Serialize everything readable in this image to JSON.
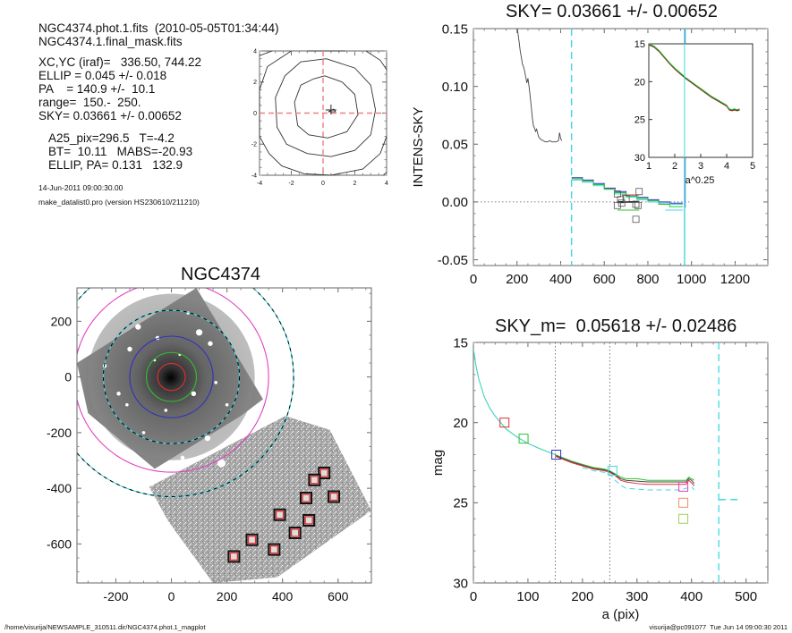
{
  "header": {
    "lines1": [
      "NGC4374.phot.1.fits  (2010-05-05T01:34:44)",
      "NGC4374.1.final_mask.fits"
    ],
    "lines2": [
      "XC,YC (iraf)=   336.50, 744.22",
      "ELLIP = 0.045 +/- 0.018",
      "PA    = 140.9 +/-  10.1",
      "range=  150.-  250.",
      "SKY= 0.03661 +/- 0.00652"
    ],
    "lines3": [
      "A25_pix=296.5   T=-4.2",
      "BT=  10.11   MABS=-20.93",
      "ELLIP, PA= 0.131   132.9"
    ],
    "date": "14-Jun-2011 09:00:30.00",
    "program": "make_datalist0.pro (version HS230610/211210)"
  },
  "footer": {
    "left": "/home/visurija/NEWSAMPLE_310511.dir/NGC4374.phot.1_magplot",
    "right": "visurija@pc091077  Tue Jun 14 09:00:30 2011"
  },
  "colors": {
    "red": "#e03030",
    "green": "#30c030",
    "blue": "#3030c0",
    "cyan": "#40d8e0",
    "magenta": "#e040c0",
    "orange": "#f09060",
    "olive": "#a0d060",
    "gray": "#444444"
  },
  "chart_data": [
    {
      "id": "contour",
      "type": "line",
      "title": "",
      "xlim": [
        -4,
        4
      ],
      "ylim": [
        -4,
        4
      ],
      "xticks": [
        "-4",
        "-2",
        "0",
        "2",
        "4"
      ],
      "yticks": [
        "-4",
        "-2",
        "0",
        "2",
        "4"
      ],
      "contours": [
        [
          [
            0.1,
            2.4
          ],
          [
            -0.6,
            2.2
          ],
          [
            -1.4,
            1.8
          ],
          [
            -1.8,
            0.7
          ],
          [
            -1.6,
            -0.8
          ],
          [
            -0.9,
            -1.4
          ],
          [
            0.3,
            -1.6
          ],
          [
            1.5,
            -1.2
          ],
          [
            2.2,
            -0.1
          ],
          [
            2.0,
            1.2
          ],
          [
            1.2,
            2.0
          ],
          [
            0.1,
            2.4
          ]
        ],
        [
          [
            0.2,
            3.5
          ],
          [
            -1.4,
            3.3
          ],
          [
            -2.4,
            2.4
          ],
          [
            -3.0,
            1.0
          ],
          [
            -2.9,
            -0.9
          ],
          [
            -2.3,
            -2.0
          ],
          [
            -1.0,
            -2.6
          ],
          [
            0.5,
            -2.8
          ],
          [
            2.0,
            -2.4
          ],
          [
            3.0,
            -1.4
          ],
          [
            3.3,
            0.2
          ],
          [
            3.0,
            1.8
          ],
          [
            2.0,
            2.9
          ],
          [
            0.2,
            3.5
          ]
        ],
        [
          [
            -4,
            3.7
          ],
          [
            -3.2,
            4.2
          ]
        ],
        [
          [
            -2.0,
            4.2
          ],
          [
            -3.5,
            3.0
          ],
          [
            -4.0,
            1.5
          ],
          [
            -4.0,
            -1.5
          ],
          [
            -3.4,
            -2.6
          ],
          [
            -2.6,
            -3.4
          ],
          [
            -1.2,
            -3.9
          ],
          [
            0.5,
            -4.0
          ],
          [
            2.5,
            -3.6
          ],
          [
            3.6,
            -2.6
          ],
          [
            4.0,
            -1.5
          ]
        ],
        [
          [
            -1.0,
            4.0
          ],
          [
            0.0,
            4.0
          ],
          [
            1.4,
            4.0
          ]
        ],
        [
          [
            2.7,
            4.2
          ],
          [
            3.6,
            3.4
          ],
          [
            4.0,
            2.8
          ]
        ],
        [
          [
            3.8,
            -4.0
          ],
          [
            4.0,
            -3.8
          ]
        ]
      ],
      "center_marker": [
        0.5,
        0.2
      ],
      "crosshair": {
        "x": 0,
        "y": 0
      }
    },
    {
      "id": "intens",
      "type": "line",
      "title": "SKY= 0.03661 +/- 0.00652",
      "xlabel": "",
      "ylabel": "INTENS-SKY",
      "xlim": [
        0,
        1350
      ],
      "ylim": [
        -0.055,
        0.15
      ],
      "xticks": [
        0,
        200,
        400,
        600,
        800,
        1000,
        1200
      ],
      "yticks": [
        -0.05,
        0.0,
        0.05,
        0.1,
        0.15
      ],
      "ytick_labels": [
        "-0.05",
        "0.00",
        "0.05",
        "0.10",
        "0.15"
      ],
      "profile": {
        "x": [
          200,
          205,
          210,
          215,
          220,
          225,
          230,
          235,
          240,
          245,
          250,
          255,
          260,
          265,
          270,
          275,
          280,
          285,
          290,
          295,
          300,
          310,
          320,
          330,
          340,
          350,
          360,
          370,
          380,
          390,
          395,
          400,
          405
        ],
        "y": [
          0.152,
          0.145,
          0.138,
          0.13,
          0.125,
          0.119,
          0.117,
          0.113,
          0.108,
          0.103,
          0.107,
          0.1,
          0.092,
          0.083,
          0.073,
          0.066,
          0.064,
          0.061,
          0.063,
          0.059,
          0.056,
          0.054,
          0.053,
          0.052,
          0.052,
          0.053,
          0.052,
          0.052,
          0.052,
          0.053,
          0.06,
          0.055,
          0.053
        ]
      },
      "sky_steps": [
        {
          "color": "blue",
          "x": [
            450,
            500,
            550,
            600,
            650,
            700,
            750,
            800,
            850,
            900,
            960
          ],
          "y": [
            0.021,
            0.019,
            0.016,
            0.012,
            0.009,
            0.006,
            0.004,
            0.002,
            0.0,
            -0.001,
            -0.001
          ]
        },
        {
          "color": "cyan",
          "x": [
            450,
            500,
            550,
            600,
            650,
            700,
            750,
            800,
            850,
            900,
            960
          ],
          "y": [
            0.019,
            0.017,
            0.014,
            0.011,
            0.007,
            0.004,
            0.002,
            0.0,
            -0.001,
            -0.002,
            -0.002
          ]
        },
        {
          "color": "green",
          "x": [
            450,
            500,
            550,
            600,
            650,
            700,
            750,
            800,
            850,
            900,
            960
          ],
          "y": [
            0.02,
            0.018,
            0.015,
            0.011,
            0.008,
            0.005,
            0.003,
            0.001,
            -0.002,
            -0.004,
            -0.004
          ]
        }
      ],
      "segments": [
        {
          "color": "red",
          "x": [
            680,
            760
          ],
          "y": [
            0.006,
            0.006
          ]
        },
        {
          "color": "black",
          "x": [
            660,
            760
          ],
          "y": [
            0.0,
            0.0
          ]
        },
        {
          "color": "green",
          "x": [
            660,
            760
          ],
          "y": [
            -0.007,
            -0.007
          ]
        },
        {
          "color": "cyan",
          "x": [
            880,
            960
          ],
          "y": [
            -0.007,
            -0.007
          ]
        }
      ],
      "squares": [
        [
          660,
          0.007
        ],
        [
          675,
          0.002
        ],
        [
          680,
          -0.001
        ],
        [
          700,
          0.003
        ],
        [
          660,
          -0.003
        ],
        [
          745,
          -0.002
        ],
        [
          755,
          -0.003
        ],
        [
          760,
          0.009
        ],
        [
          745,
          -0.015
        ]
      ],
      "vlines": [
        {
          "x": 450,
          "color": "cyan",
          "style": "dash"
        },
        {
          "x": 968,
          "color": "cyan",
          "style": "solid"
        }
      ],
      "hline": {
        "y": 0,
        "style": "dot"
      },
      "inset": {
        "xlabel": "a^0.25",
        "xlim": [
          1,
          5
        ],
        "ylim": [
          15,
          30
        ],
        "xticks": [
          1,
          2,
          3,
          4,
          5
        ],
        "yticks": [
          15,
          20,
          25,
          30
        ],
        "curve": {
          "x": [
            1.0,
            1.2,
            1.4,
            1.6,
            1.8,
            2.0,
            2.2,
            2.4,
            2.6,
            2.8,
            3.0,
            3.2,
            3.4,
            3.6,
            3.8,
            4.0,
            4.1,
            4.2,
            4.3,
            4.4,
            4.5
          ],
          "y": [
            15.0,
            15.3,
            15.9,
            16.7,
            17.5,
            18.2,
            18.8,
            19.4,
            19.9,
            20.4,
            20.9,
            21.4,
            21.9,
            22.3,
            22.7,
            23.1,
            23.6,
            23.7,
            23.6,
            23.7,
            23.6
          ]
        }
      }
    },
    {
      "id": "image",
      "type": "scatter",
      "title": "NGC4374",
      "xlim": [
        -340,
        720
      ],
      "ylim": [
        -740,
        320
      ],
      "xticks": [
        -200,
        0,
        200,
        400,
        600
      ],
      "yticks": [
        -600,
        -400,
        -200,
        0,
        200
      ],
      "ellipses": [
        {
          "r": 50,
          "color": "red"
        },
        {
          "r": 90,
          "color": "green"
        },
        {
          "r": 150,
          "color": "blue"
        },
        {
          "r": 245,
          "color": "cyan"
        },
        {
          "r": 245,
          "color": "black",
          "dash": true
        },
        {
          "r": 350,
          "color": "magenta"
        },
        {
          "r": 440,
          "color": "cyan"
        },
        {
          "r": 440,
          "color": "black",
          "dash": true
        }
      ],
      "sky_boxes": [
        [
          550,
          -345
        ],
        [
          515,
          -370
        ],
        [
          485,
          -435
        ],
        [
          585,
          -430
        ],
        [
          390,
          -495
        ],
        [
          495,
          -515
        ],
        [
          445,
          -560
        ],
        [
          290,
          -585
        ],
        [
          370,
          -620
        ],
        [
          225,
          -645
        ]
      ]
    },
    {
      "id": "mag",
      "type": "line",
      "title": "SKY_m=  0.05618 +/- 0.02486",
      "xlabel": "a (pix)",
      "ylabel": "mag",
      "xlim": [
        0,
        540
      ],
      "ylim": [
        15,
        30
      ],
      "xticks": [
        0,
        100,
        200,
        300,
        400,
        500
      ],
      "yticks": [
        15,
        20,
        25,
        30
      ],
      "series": [
        {
          "name": "green",
          "color": "green",
          "x": [
            0,
            5,
            10,
            20,
            30,
            40,
            50,
            60,
            80,
            100,
            120,
            150,
            180,
            200,
            220,
            240,
            250,
            260,
            270,
            280,
            300,
            320,
            340,
            360,
            380,
            390,
            395,
            400,
            405
          ],
          "y": [
            15.4,
            16.5,
            17.3,
            18.4,
            19.1,
            19.6,
            20.0,
            20.4,
            20.9,
            21.3,
            21.6,
            22.0,
            22.4,
            22.6,
            22.8,
            22.9,
            23.0,
            23.2,
            23.4,
            23.5,
            23.5,
            23.6,
            23.6,
            23.6,
            23.6,
            23.6,
            23.4,
            23.5,
            23.6
          ]
        },
        {
          "name": "black",
          "color": "gray",
          "x": [
            150,
            180,
            200,
            220,
            240,
            250,
            260,
            270,
            280,
            300,
            320,
            340,
            360,
            380,
            390,
            395,
            400,
            405
          ],
          "y": [
            22.05,
            22.45,
            22.65,
            22.85,
            22.95,
            23.05,
            23.25,
            23.5,
            23.6,
            23.65,
            23.7,
            23.7,
            23.7,
            23.7,
            23.7,
            23.5,
            23.6,
            23.8
          ]
        },
        {
          "name": "red",
          "color": "red",
          "x": [
            150,
            180,
            200,
            220,
            240,
            250,
            260,
            270,
            280,
            300,
            320,
            340,
            360,
            380,
            390,
            395,
            400,
            405
          ],
          "y": [
            22.1,
            22.5,
            22.7,
            22.9,
            23.0,
            23.1,
            23.3,
            23.6,
            23.7,
            23.8,
            23.85,
            23.85,
            23.85,
            23.85,
            23.85,
            23.6,
            23.75,
            23.95
          ]
        },
        {
          "name": "cyan-dash",
          "color": "cyan",
          "dash": true,
          "x": [
            200,
            220,
            240,
            250,
            260,
            270,
            280,
            300,
            320,
            340,
            360,
            380,
            400,
            405
          ],
          "y": [
            22.8,
            23.0,
            23.1,
            23.2,
            23.6,
            23.9,
            24.1,
            24.15,
            24.2,
            24.2,
            24.2,
            24.2,
            24.0,
            24.2
          ]
        }
      ],
      "markers": [
        {
          "x": 57,
          "y": 20.0,
          "color": "red"
        },
        {
          "x": 92,
          "y": 21.0,
          "color": "green"
        },
        {
          "x": 152,
          "y": 22.0,
          "color": "blue"
        },
        {
          "x": 255,
          "y": 23.0,
          "color": "cyan"
        },
        {
          "x": 385,
          "y": 24.0,
          "color": "magenta"
        },
        {
          "x": 385,
          "y": 25.0,
          "color": "orange"
        },
        {
          "x": 385,
          "y": 26.0,
          "color": "olive"
        }
      ],
      "vlines": [
        {
          "x": 150,
          "style": "dot"
        },
        {
          "x": 250,
          "style": "dot"
        },
        {
          "x": 450,
          "style": "dash",
          "color": "cyan"
        }
      ],
      "sky_mark": {
        "x": [
          450,
          490
        ],
        "y": 24.8
      }
    }
  ]
}
